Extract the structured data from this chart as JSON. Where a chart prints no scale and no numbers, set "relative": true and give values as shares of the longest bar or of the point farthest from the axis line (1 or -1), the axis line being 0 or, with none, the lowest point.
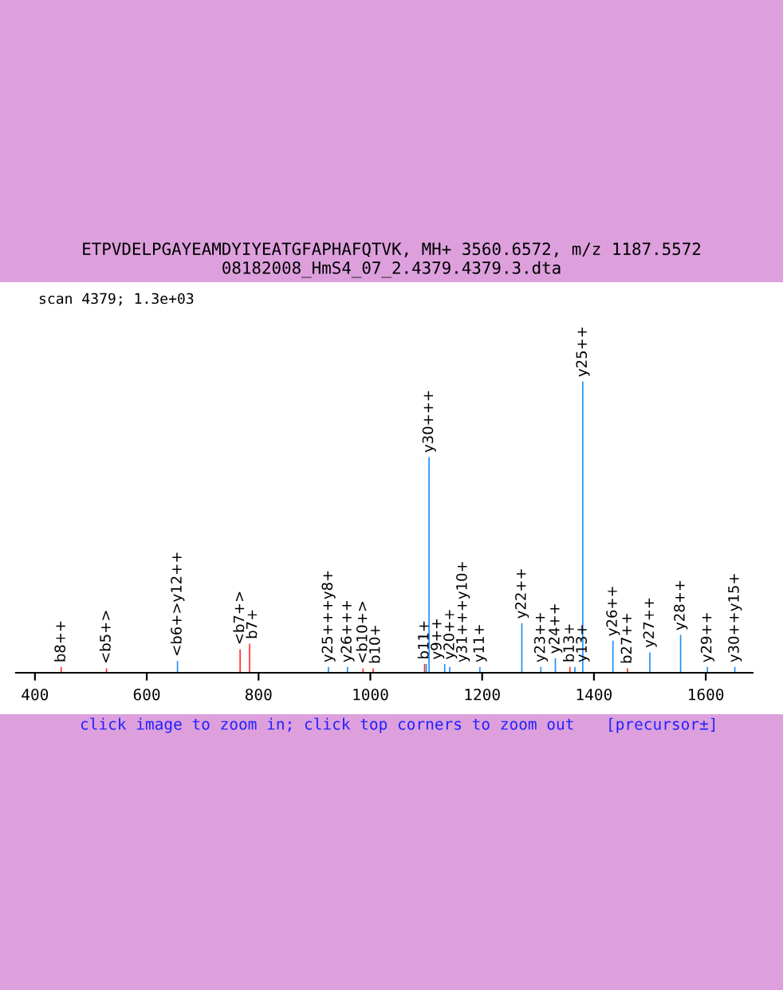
{
  "chart_data": {
    "type": "bar",
    "title": "ETPVDELPGAYEAMDYIYEATGFAPHAFQTVK, MH+ 3560.6572, m/z 1187.5572",
    "subtitle": "08182008_HmS4_07_2.4379.4379.3.dta",
    "relative": true,
    "x": [
      447,
      528,
      655,
      767,
      784,
      925,
      959,
      987,
      1005,
      1097,
      1100,
      1105,
      1133,
      1142,
      1196,
      1271,
      1305,
      1331,
      1357,
      1366,
      1380,
      1434,
      1460,
      1500,
      1555,
      1603,
      1652
    ],
    "values": [
      0.02,
      0.015,
      0.04,
      0.08,
      0.1,
      0.02,
      0.02,
      0.015,
      0.015,
      0.03,
      0.03,
      0.74,
      0.03,
      0.02,
      0.02,
      0.17,
      0.02,
      0.05,
      0.02,
      0.02,
      1.0,
      0.11,
      0.015,
      0.07,
      0.13,
      0.02,
      0.02
    ],
    "colors": [
      "#ff3030",
      "#ff3030",
      "#1e90ff",
      "#ff3030",
      "#ff3030",
      "#1e90ff",
      "#1e90ff",
      "#ff3030",
      "#ff3030",
      "#ff3030",
      "#1e90ff",
      "#1e90ff",
      "#1e90ff",
      "#1e90ff",
      "#1e90ff",
      "#1e90ff",
      "#1e90ff",
      "#1e90ff",
      "#ff3030",
      "#1e90ff",
      "#1e90ff",
      "#1e90ff",
      "#ff3030",
      "#1e90ff",
      "#1e90ff",
      "#1e90ff",
      "#1e90ff"
    ],
    "xlim": [
      366,
      1684
    ],
    "xticks": [
      400,
      600,
      800,
      1000,
      1200,
      1400,
      1600
    ],
    "grid": false,
    "legend": false,
    "annotations": [
      {
        "text": "b8++",
        "x": 447,
        "y": 0.02
      },
      {
        "text": "<b5+>",
        "x": 528,
        "y": 0.015
      },
      {
        "text": "<b6+>y12++",
        "x": 655,
        "y": 0.04
      },
      {
        "text": "<b7+>",
        "x": 767,
        "y": 0.08
      },
      {
        "text": "b7+",
        "x": 784,
        "y": 0.1
      },
      {
        "text": "y25+++y8+",
        "x": 925,
        "y": 0.02
      },
      {
        "text": "y26+++",
        "x": 959,
        "y": 0.02
      },
      {
        "text": "<b10+>",
        "x": 987,
        "y": 0.015
      },
      {
        "text": "b10+",
        "x": 1005,
        "y": 0.015
      },
      {
        "text": "b11+",
        "x": 1097,
        "y": 0.03
      },
      {
        "text": "y9++",
        "x": 1100,
        "y": 0.03
      },
      {
        "text": "y30+++",
        "x": 1105,
        "y": 0.74
      },
      {
        "text": "y20++",
        "x": 1133,
        "y": 0.03
      },
      {
        "text": "y31+++y10+",
        "x": 1142,
        "y": 0.02
      },
      {
        "text": "y11+",
        "x": 1196,
        "y": 0.02
      },
      {
        "text": "y22++",
        "x": 1271,
        "y": 0.17
      },
      {
        "text": "y23++",
        "x": 1305,
        "y": 0.02
      },
      {
        "text": "y24++",
        "x": 1331,
        "y": 0.05
      },
      {
        "text": "b13+",
        "x": 1357,
        "y": 0.02
      },
      {
        "text": "y13+",
        "x": 1366,
        "y": 0.02
      },
      {
        "text": "y25++",
        "x": 1380,
        "y": 1.0
      },
      {
        "text": "y26++",
        "x": 1434,
        "y": 0.11
      },
      {
        "text": "b27++",
        "x": 1460,
        "y": 0.015
      },
      {
        "text": "y27++",
        "x": 1500,
        "y": 0.07
      },
      {
        "text": "y28++",
        "x": 1555,
        "y": 0.13
      },
      {
        "text": "y29++",
        "x": 1603,
        "y": 0.02
      },
      {
        "text": "y30++y15+",
        "x": 1652,
        "y": 0.02
      },
      "scan 4379; 1.3e+03",
      "click image to zoom in; click top corners to zoom out",
      "[precursor±]"
    ]
  }
}
